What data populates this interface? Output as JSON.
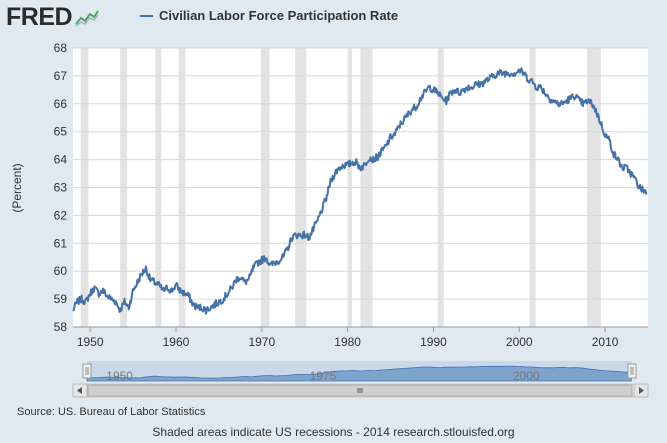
{
  "logo": {
    "text": "FRED"
  },
  "chart_data": {
    "type": "line",
    "title": "",
    "ylabel": "(Percent)",
    "xlabel": "",
    "ylim": [
      58,
      68
    ],
    "xlim": [
      1948.0,
      2015.0
    ],
    "y_ticks": [
      "58",
      "59",
      "60",
      "61",
      "62",
      "63",
      "64",
      "65",
      "66",
      "67",
      "68"
    ],
    "x_ticks": [
      "1950",
      "1960",
      "1970",
      "1980",
      "1990",
      "2000",
      "2010"
    ],
    "series": [
      {
        "name": "Civilian Labor Force Participation Rate",
        "color": "#4572a7",
        "x": [
          1948.0,
          1948.5,
          1949.0,
          1949.5,
          1950.0,
          1950.5,
          1951.0,
          1951.5,
          1952.0,
          1952.5,
          1953.0,
          1953.5,
          1954.0,
          1954.5,
          1955.0,
          1955.5,
          1956.0,
          1956.5,
          1957.0,
          1957.5,
          1958.0,
          1958.5,
          1959.0,
          1959.5,
          1960.0,
          1960.5,
          1961.0,
          1961.5,
          1962.0,
          1962.5,
          1963.0,
          1963.5,
          1964.0,
          1964.5,
          1965.0,
          1965.5,
          1966.0,
          1966.5,
          1967.0,
          1967.5,
          1968.0,
          1968.5,
          1969.0,
          1969.5,
          1970.0,
          1970.5,
          1971.0,
          1971.5,
          1972.0,
          1972.5,
          1973.0,
          1973.5,
          1974.0,
          1974.5,
          1975.0,
          1975.5,
          1976.0,
          1976.5,
          1977.0,
          1977.5,
          1978.0,
          1978.5,
          1979.0,
          1979.5,
          1980.0,
          1980.5,
          1981.0,
          1981.5,
          1982.0,
          1982.5,
          1983.0,
          1983.5,
          1984.0,
          1984.5,
          1985.0,
          1985.5,
          1986.0,
          1986.5,
          1987.0,
          1987.5,
          1988.0,
          1988.5,
          1989.0,
          1989.5,
          1990.0,
          1990.5,
          1991.0,
          1991.5,
          1992.0,
          1992.5,
          1993.0,
          1993.5,
          1994.0,
          1994.5,
          1995.0,
          1995.5,
          1996.0,
          1996.5,
          1997.0,
          1997.5,
          1998.0,
          1998.5,
          1999.0,
          1999.5,
          2000.0,
          2000.5,
          2001.0,
          2001.5,
          2002.0,
          2002.5,
          2003.0,
          2003.5,
          2004.0,
          2004.5,
          2005.0,
          2005.5,
          2006.0,
          2006.5,
          2007.0,
          2007.5,
          2008.0,
          2008.5,
          2009.0,
          2009.5,
          2010.0,
          2010.5,
          2011.0,
          2011.5,
          2012.0,
          2012.5,
          2013.0,
          2013.5,
          2014.0,
          2014.5,
          2014.9
        ],
        "values": [
          58.6,
          58.9,
          59.0,
          58.9,
          59.2,
          59.4,
          59.2,
          59.3,
          59.1,
          59.0,
          58.9,
          58.6,
          58.9,
          58.7,
          59.3,
          59.6,
          59.9,
          60.1,
          59.7,
          59.6,
          59.5,
          59.3,
          59.4,
          59.3,
          59.5,
          59.3,
          59.2,
          59.1,
          58.8,
          58.7,
          58.7,
          58.6,
          58.7,
          58.8,
          58.9,
          59.0,
          59.2,
          59.4,
          59.7,
          59.8,
          59.6,
          59.7,
          60.1,
          60.3,
          60.4,
          60.5,
          60.2,
          60.3,
          60.4,
          60.5,
          60.8,
          61.2,
          61.3,
          61.3,
          61.3,
          61.2,
          61.5,
          61.8,
          62.2,
          62.6,
          63.2,
          63.5,
          63.7,
          63.8,
          63.8,
          63.9,
          63.9,
          63.7,
          63.8,
          64.1,
          64.0,
          64.1,
          64.3,
          64.5,
          64.8,
          64.9,
          65.2,
          65.4,
          65.6,
          65.8,
          65.9,
          66.2,
          66.4,
          66.6,
          66.5,
          66.4,
          66.2,
          66.1,
          66.4,
          66.5,
          66.4,
          66.5,
          66.6,
          66.6,
          66.7,
          66.7,
          66.8,
          66.9,
          67.0,
          67.1,
          67.1,
          67.1,
          67.1,
          67.1,
          67.2,
          67.1,
          66.9,
          66.8,
          66.6,
          66.6,
          66.4,
          66.2,
          66.1,
          66.0,
          66.0,
          66.1,
          66.2,
          66.3,
          66.1,
          66.0,
          66.1,
          66.0,
          65.7,
          65.3,
          64.9,
          64.7,
          64.2,
          64.0,
          63.7,
          63.7,
          63.5,
          63.3,
          63.0,
          62.9,
          62.8
        ],
        "noise": 0.13
      }
    ],
    "recessions": [
      [
        1948.9,
        1949.8
      ],
      [
        1953.5,
        1954.3
      ],
      [
        1957.6,
        1958.3
      ],
      [
        1960.3,
        1961.1
      ],
      [
        1969.9,
        1970.9
      ],
      [
        1973.9,
        1975.2
      ],
      [
        1980.0,
        1980.5
      ],
      [
        1981.5,
        1982.9
      ],
      [
        1990.5,
        1991.2
      ],
      [
        2001.2,
        2001.9
      ],
      [
        2007.9,
        2009.5
      ]
    ],
    "grid": true
  },
  "navigator": {
    "labels": [
      "1950",
      "1975",
      "2000"
    ]
  },
  "footer": {
    "source": "Source: US. Bureau of Labor Statistics",
    "note": "Shaded areas indicate US recessions - 2014 research.stlouisfed.org"
  }
}
